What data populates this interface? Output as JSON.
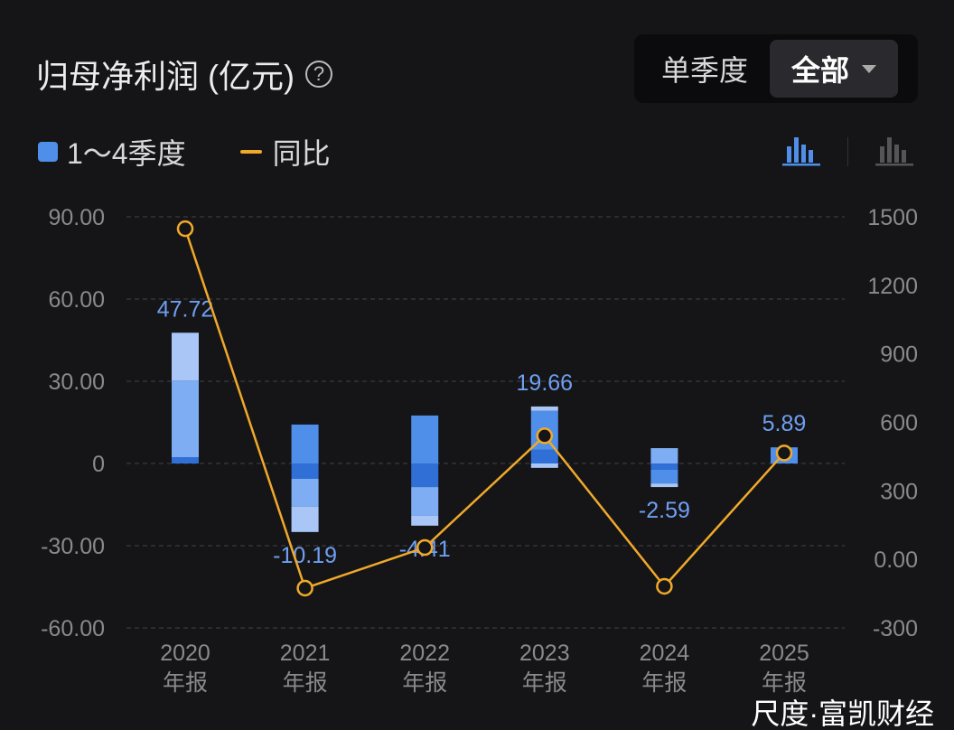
{
  "header": {
    "title": "归母净利润 (亿元)",
    "help_icon": "question-circle-icon",
    "toggle": {
      "options": [
        "单季度",
        "全部"
      ],
      "selected": "全部"
    }
  },
  "legend": {
    "bar_label": "1～4季度",
    "line_label": "同比"
  },
  "watermark": "尺度·富凯财经",
  "colors": {
    "q1": "#a9c6f7",
    "q2": "#7fadf3",
    "q3": "#4f8fea",
    "q4": "#2f6fd6",
    "line": "#f0a92a",
    "bg": "#151518"
  },
  "chart_data": {
    "type": "bar",
    "title": "归母净利润 (亿元)",
    "categories": [
      "2020\n年报",
      "2021\n年报",
      "2022\n年报",
      "2023\n年报",
      "2024\n年报",
      "2025\n年报"
    ],
    "bar_labels": [
      "47.72",
      "-10.19",
      "-4.41",
      "19.66",
      "-2.59",
      "5.89"
    ],
    "values": [
      47.72,
      -10.19,
      -4.41,
      19.66,
      -2.59,
      5.89
    ],
    "segments": [
      [
        {
          "v": 2.3,
          "c": "q4"
        },
        {
          "v": 28.0,
          "c": "q2"
        },
        {
          "v": 17.4,
          "c": "q1"
        }
      ],
      [
        {
          "v": 14.2,
          "c": "q3"
        },
        {
          "v": -5.6,
          "c": "q4"
        },
        {
          "v": -10.2,
          "c": "q2"
        },
        {
          "v": -9.2,
          "c": "q1"
        }
      ],
      [
        {
          "v": 17.5,
          "c": "q3"
        },
        {
          "v": -8.6,
          "c": "q4"
        },
        {
          "v": -10.5,
          "c": "q2"
        },
        {
          "v": -3.6,
          "c": "q1"
        }
      ],
      [
        {
          "v": 5.0,
          "c": "q4"
        },
        {
          "v": 14.2,
          "c": "q3"
        },
        {
          "v": 1.6,
          "c": "q1"
        },
        {
          "v": -1.6,
          "c": "q1"
        }
      ],
      [
        {
          "v": 5.6,
          "c": "q2"
        },
        {
          "v": -2.3,
          "c": "q4"
        },
        {
          "v": -5.0,
          "c": "q3"
        },
        {
          "v": -1.3,
          "c": "q1"
        }
      ],
      [
        {
          "v": 5.89,
          "c": "q3"
        }
      ]
    ],
    "yoy": [
      1448,
      -126,
      52,
      541,
      -118,
      466
    ],
    "y_left": {
      "ticks": [
        "90.00",
        "60.00",
        "30.00",
        "0",
        "-30.00",
        "-60.00"
      ],
      "values": [
        90,
        60,
        30,
        0,
        -30,
        -60
      ],
      "lim": [
        -60,
        90
      ]
    },
    "y_right": {
      "ticks": [
        "1500",
        "1200",
        "900",
        "600",
        "300",
        "0.00",
        "-300"
      ],
      "values": [
        1500,
        1200,
        900,
        600,
        300,
        0,
        -300
      ],
      "lim": [
        -300,
        1500
      ]
    },
    "grid": true,
    "legend": "top-left"
  }
}
